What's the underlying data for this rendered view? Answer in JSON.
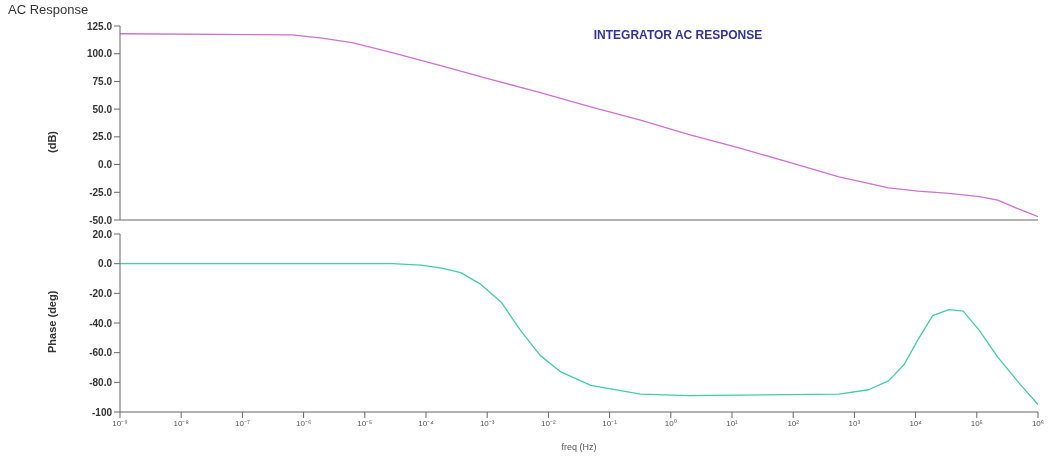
{
  "chart_data": [
    {
      "type": "line",
      "title": "AC Response",
      "annotations": [
        "INTEGRATOR AC RESPONSE"
      ],
      "ylabel": "(dB)",
      "log": "x",
      "tick_labels": "y",
      "marker": "none",
      "line_style": "solid",
      "xlim": [
        1e-09,
        1000000
      ],
      "ylim": [
        -50,
        125
      ],
      "yticks": [
        {
          "value": -50,
          "label": "-50.0"
        },
        {
          "value": -25,
          "label": "-25.0"
        },
        {
          "value": 0,
          "label": "0.0"
        },
        {
          "value": 25,
          "label": "25.0"
        },
        {
          "value": 50,
          "label": "50.0"
        },
        {
          "value": 75,
          "label": "75.0"
        },
        {
          "value": 100,
          "label": "100.0"
        },
        {
          "value": 125,
          "label": "125.0"
        }
      ],
      "series": [
        {
          "color": "#d070d0",
          "x": [
            1e-09,
            6.5e-07,
            2e-06,
            6.2e-06,
            2.8e-05,
            0.00018,
            0.0011,
            0.0074,
            0.049,
            0.32,
            2,
            13,
            87,
            560,
            1700,
            3600,
            11000,
            35000,
            110000,
            220000,
            480000,
            1000000
          ],
          "values": [
            118,
            117,
            114,
            110,
            101,
            89,
            77,
            65,
            52,
            40,
            27,
            15,
            2,
            -11,
            -17,
            -21,
            -24,
            -26,
            -29,
            -32,
            -40,
            -47
          ]
        }
      ]
    },
    {
      "type": "line",
      "xlabel": "freq (Hz)",
      "ylabel": "Phase (deg)",
      "log": "x",
      "marker": "none",
      "line_style": "solid",
      "xlim": [
        1e-09,
        1000000
      ],
      "xticks": [
        {
          "value": 1e-09,
          "label": "10⁻⁹"
        },
        {
          "value": 1e-08,
          "label": "10⁻⁸"
        },
        {
          "value": 1e-07,
          "label": "10⁻⁷"
        },
        {
          "value": 1e-06,
          "label": "10⁻⁶"
        },
        {
          "value": 1e-05,
          "label": "10⁻⁵"
        },
        {
          "value": 0.0001,
          "label": "10⁻⁴"
        },
        {
          "value": 0.001,
          "label": "10⁻³"
        },
        {
          "value": 0.01,
          "label": "10⁻²"
        },
        {
          "value": 0.1,
          "label": "10⁻¹"
        },
        {
          "value": 1,
          "label": "10⁰"
        },
        {
          "value": 10,
          "label": "10¹"
        },
        {
          "value": 100,
          "label": "10²"
        },
        {
          "value": 1000,
          "label": "10³"
        },
        {
          "value": 10000,
          "label": "10⁴"
        },
        {
          "value": 100000,
          "label": "10⁵"
        },
        {
          "value": 1000000,
          "label": "10⁶"
        }
      ],
      "ylim": [
        -100,
        20
      ],
      "yticks": [
        {
          "value": -100,
          "label": "-100"
        },
        {
          "value": -80,
          "label": "-80.0"
        },
        {
          "value": -60,
          "label": "-60.0"
        },
        {
          "value": -40,
          "label": "-40.0"
        },
        {
          "value": -20,
          "label": "-20.0"
        },
        {
          "value": 0,
          "label": "0.0"
        },
        {
          "value": 20,
          "label": "20.0"
        }
      ],
      "series": [
        {
          "color": "#40d0a0",
          "x": [
            1e-09,
            2.8e-05,
            8.3e-05,
            0.00018,
            0.00037,
            0.00079,
            0.0017,
            0.0035,
            0.0074,
            0.016,
            0.049,
            0.32,
            2,
            560,
            1700,
            3600,
            6500,
            11000,
            19000,
            35000,
            60000,
            110000,
            220000,
            480000,
            1000000
          ],
          "values": [
            0,
            0,
            -1,
            -3,
            -6,
            -14,
            -26,
            -45,
            -62,
            -73,
            -82,
            -88,
            -89,
            -88,
            -85,
            -79,
            -68,
            -51,
            -35,
            -31,
            -32,
            -45,
            -63,
            -80,
            -95
          ]
        }
      ]
    }
  ]
}
